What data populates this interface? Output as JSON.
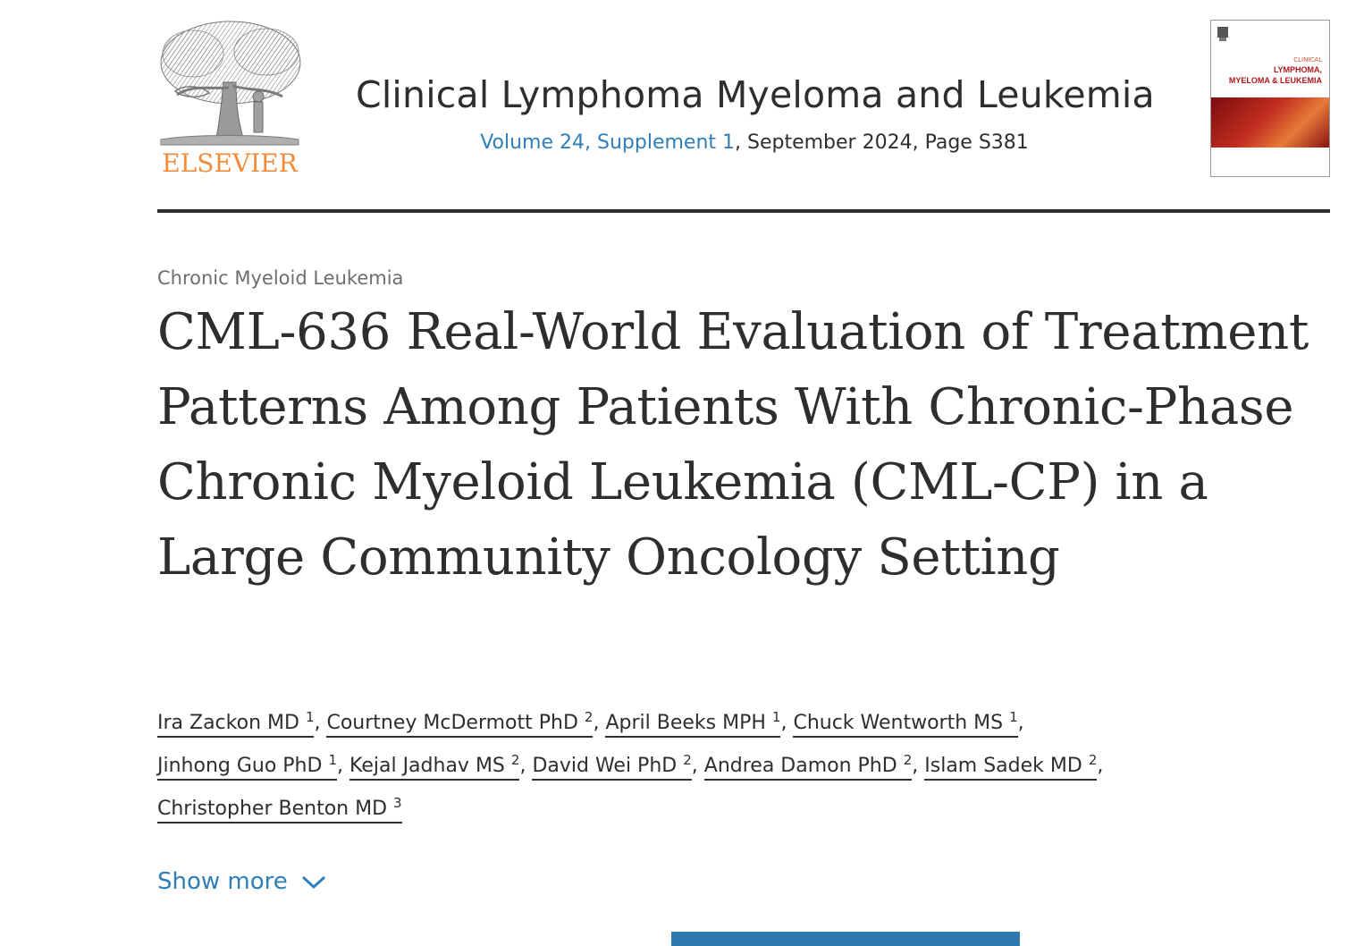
{
  "header": {
    "publisher_logo_text": "ELSEVIER",
    "journal_title": "Clinical Lymphoma Myeloma and Leukemia",
    "volume_link": "Volume 24, Supplement 1",
    "meta_rest": ", September 2024, Page S381",
    "cover": {
      "line1": "CLINICAL",
      "line2": "LYMPHOMA,",
      "line3": "MYELOMA & LEUKEMIA"
    }
  },
  "article": {
    "section": "Chronic Myeloid Leukemia",
    "title": "CML-636 Real-World Evaluation of Treatment Patterns Among Patients With Chronic-Phase Chronic Myeloid Leukemia (CML-CP) in a Large Community Oncology Setting",
    "authors": [
      {
        "name": "Ira Zackon MD",
        "aff": "1"
      },
      {
        "name": "Courtney McDermott PhD",
        "aff": "2"
      },
      {
        "name": "April Beeks MPH",
        "aff": "1"
      },
      {
        "name": "Chuck Wentworth MS",
        "aff": "1"
      },
      {
        "name": "Jinhong Guo PhD",
        "aff": "1"
      },
      {
        "name": "Kejal Jadhav MS",
        "aff": "2"
      },
      {
        "name": "David Wei PhD",
        "aff": "2"
      },
      {
        "name": "Andrea Damon PhD",
        "aff": "2"
      },
      {
        "name": "Islam Sadek MD",
        "aff": "2"
      },
      {
        "name": "Christopher Benton MD",
        "aff": "3"
      }
    ],
    "show_more": "Show more"
  },
  "colors": {
    "link": "#2f7eb6",
    "publisher_orange": "#f08c3a",
    "text": "#2e2e2e",
    "muted": "#6e6e6e"
  },
  "icons": {
    "show_more": "chevron-down-icon",
    "logo": "elsevier-tree-logo"
  }
}
